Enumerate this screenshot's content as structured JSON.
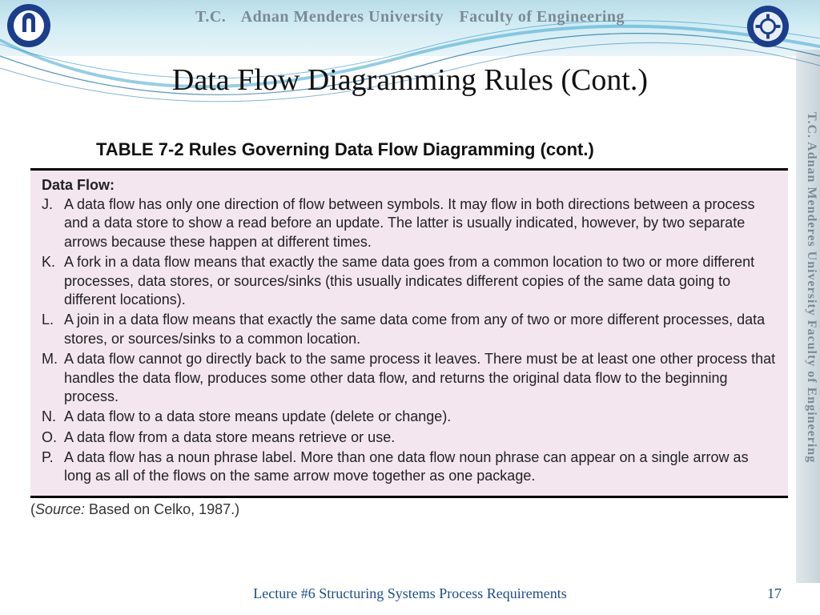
{
  "header": {
    "tc": "T.C.",
    "university": "Adnan Menderes University",
    "faculty": "Faculty of Engineering"
  },
  "sidebar_text": "T.C.   Adnan Menderes University   Faculty of Engineering",
  "slide": {
    "title": "Data Flow Diagramming Rules (Cont.)",
    "table_caption": "TABLE 7-2 Rules Governing Data Flow Diagramming (cont.)",
    "section_heading": "Data Flow:",
    "rules": [
      {
        "letter": "J.",
        "text": "A data flow has only one direction of flow between symbols. It may flow in both directions between a process and a data store to show a read before an update. The latter is usually indicated, however, by two separate arrows because these happen at different times."
      },
      {
        "letter": "K.",
        "text": "A fork in a data flow means that exactly the same data goes from a common location to two or more different processes, data stores, or sources/sinks (this usually indicates different copies of the same data going to different locations)."
      },
      {
        "letter": "L.",
        "text": "A join in a data flow means that exactly the same data come from any of two or more different processes, data stores, or sources/sinks to a common location."
      },
      {
        "letter": "M.",
        "text": "A data flow cannot go directly back to the same process it leaves. There must be at least one other process that handles the data flow, produces some other data flow, and returns the original data flow to the beginning process."
      },
      {
        "letter": "N.",
        "text": "A data flow to a data store means update (delete or change)."
      },
      {
        "letter": "O.",
        "text": "A data flow from a data store means retrieve or use."
      },
      {
        "letter": "P.",
        "text": "A data flow has a noun phrase label. More than one data flow noun phrase can appear on a single arrow as long as all of the flows on the same arrow move together as one package."
      }
    ],
    "source_label": "Source:",
    "source_text": " Based on Celko, 1987.)"
  },
  "footer": {
    "lecture": "Lecture #6 Structuring Systems Process Requirements",
    "page": "17"
  },
  "colors": {
    "header_grad_top": "#b8dde8",
    "box_bg": "#f4e6ef",
    "footer_text": "#1b4f8a",
    "header_text": "#7a8a95"
  }
}
